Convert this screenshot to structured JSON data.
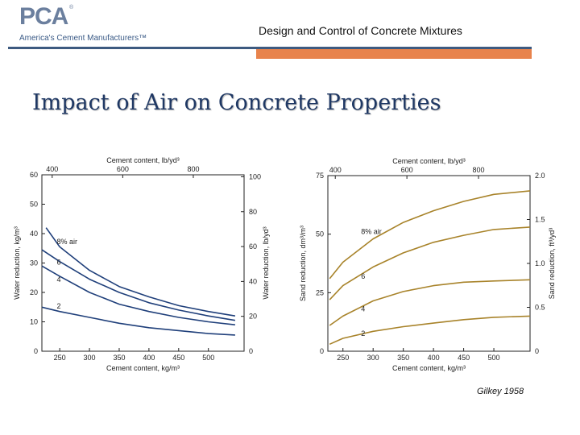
{
  "header": {
    "logo_text": "PCA",
    "logo_tagline": "America's Cement Manufacturers™",
    "logo_mark": "®",
    "title": "Design and Control of Concrete Mixtures"
  },
  "slide_title": "Impact of Air on Concrete Properties",
  "citation": "Gilkey 1958",
  "colors": {
    "left_curves": "#1f3f7a",
    "right_curves": "#a8832a",
    "rule_blue": "#3d5a80",
    "rule_orange": "#e8834c"
  },
  "chart_data": [
    {
      "type": "line",
      "xlabel": "Cement content, kg/m³",
      "ylabel": "Water reduction, kg/m³",
      "top_xlabel": "Cement content, lb/yd³",
      "right_ylabel": "Water reduction, lb/yd³",
      "xlim": [
        220,
        560
      ],
      "ylim": [
        0,
        60
      ],
      "x_ticks": [
        "250",
        "300",
        "350",
        "400",
        "450",
        "500"
      ],
      "y_ticks": [
        "0",
        "10",
        "20",
        "30",
        "40",
        "50",
        "60"
      ],
      "top_ticks": [
        "400",
        "600",
        "800"
      ],
      "right_ticks": [
        "0",
        "20",
        "40",
        "60",
        "80",
        "100"
      ],
      "series": [
        {
          "name": "8% air",
          "x": [
            227,
            250,
            300,
            350,
            400,
            450,
            500,
            545
          ],
          "y": [
            42,
            35.5,
            27.5,
            22,
            18.5,
            15.5,
            13.5,
            12
          ]
        },
        {
          "name": "6",
          "x": [
            220,
            250,
            300,
            350,
            400,
            450,
            500,
            545
          ],
          "y": [
            34.5,
            30.5,
            24.5,
            20,
            16.5,
            14,
            12,
            10.5
          ]
        },
        {
          "name": "4",
          "x": [
            220,
            250,
            300,
            350,
            400,
            450,
            500,
            545
          ],
          "y": [
            29,
            25.5,
            20,
            16,
            13.5,
            11.5,
            10,
            9
          ]
        },
        {
          "name": "2",
          "x": [
            220,
            250,
            300,
            350,
            400,
            450,
            500,
            545
          ],
          "y": [
            15,
            13.5,
            11.5,
            9.5,
            8,
            7,
            6,
            5.5
          ]
        }
      ]
    },
    {
      "type": "line",
      "xlabel": "Cement content, kg/m³",
      "ylabel": "Sand reduction, dm³/m³",
      "top_xlabel": "Cement content, lb/yd³",
      "right_ylabel": "Sand reduction, ft³/yd³",
      "xlim": [
        225,
        560
      ],
      "ylim": [
        0,
        75
      ],
      "x_ticks": [
        "250",
        "300",
        "350",
        "400",
        "450",
        "500"
      ],
      "y_ticks": [
        "0",
        "25",
        "50",
        "75"
      ],
      "top_ticks": [
        "400",
        "600",
        "800"
      ],
      "right_ticks": [
        "0",
        "0.5",
        "1.0",
        "1.5",
        "2.0"
      ],
      "series": [
        {
          "name": "8% air",
          "x": [
            228,
            250,
            300,
            350,
            400,
            450,
            500,
            560
          ],
          "y": [
            31,
            38,
            48,
            55,
            60,
            64,
            67,
            68.5
          ]
        },
        {
          "name": "6",
          "x": [
            228,
            250,
            300,
            350,
            400,
            450,
            500,
            560
          ],
          "y": [
            22,
            28,
            36,
            42,
            46.5,
            49.5,
            52,
            53
          ]
        },
        {
          "name": "4",
          "x": [
            228,
            250,
            300,
            350,
            400,
            450,
            500,
            560
          ],
          "y": [
            11,
            15,
            21.5,
            25.5,
            28,
            29.5,
            30,
            30.5
          ]
        },
        {
          "name": "2",
          "x": [
            228,
            250,
            300,
            350,
            400,
            450,
            500,
            560
          ],
          "y": [
            3,
            5.5,
            8.5,
            10.5,
            12,
            13.5,
            14.5,
            15
          ]
        }
      ]
    }
  ]
}
